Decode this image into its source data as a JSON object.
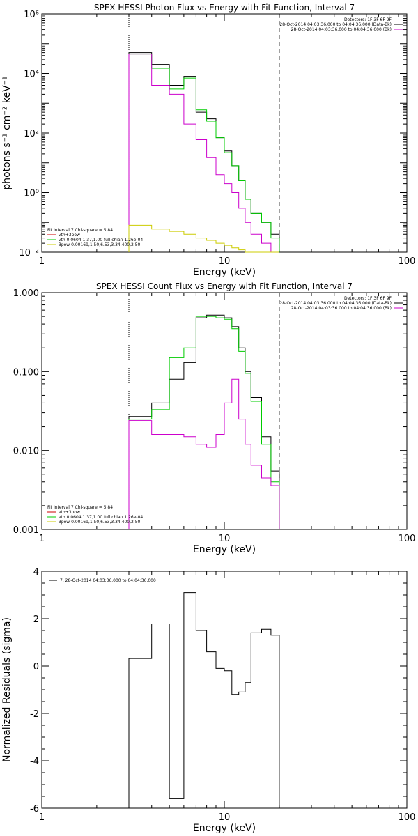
{
  "chart_data": [
    {
      "type": "line",
      "title": "SPEX HESSI Photon Flux vs Energy with Fit Function, Interval 7",
      "xlabel": "Energy (keV)",
      "ylabel": "photons s⁻¹ cm⁻² keV⁻¹",
      "xscale": "log",
      "yscale": "log",
      "xlim": [
        1,
        100
      ],
      "ylim": [
        0.01,
        1000000
      ],
      "x_tick_labels": [
        "1",
        "10",
        "100"
      ],
      "y_tick_labels": [
        "10⁻²",
        "10⁰",
        "10²",
        "10⁴",
        "10⁶"
      ],
      "y_tick_values": [
        0.01,
        1,
        100,
        10000,
        1000000
      ],
      "vlines": [
        {
          "x": 3.0,
          "style": "dotted"
        },
        {
          "x": 20.0,
          "style": "dashed"
        }
      ],
      "legend_right": [
        {
          "text": "Detectors: 1F 3F 6F 9F",
          "color": "#000000"
        },
        {
          "text": "28-Oct-2014 04:03:36.000 to 04:04:36.000 (Data-Bk)",
          "color": "#000000"
        },
        {
          "text": "28-Oct-2014 04:03:36.000 to 04:04:36.000 (Bk)",
          "color": "#cc00cc"
        }
      ],
      "legend_left": [
        {
          "text": "Fit Interval 7   Chi-square = 5.84",
          "color": "#000000"
        },
        {
          "text": "vth+3pow",
          "color": "#cc0000"
        },
        {
          "text": "vth 0.0604,1.37,1.00  full chian 1.26e-04",
          "color": "#00cc00"
        },
        {
          "text": "3pow 0.00169,1.50,6.53,3.34,400,2.50",
          "color": "#cccc00"
        }
      ],
      "series": [
        {
          "color": "#000000",
          "edges": [
            3.0,
            4.0,
            5.0,
            6.0,
            7.0,
            8.0,
            9.0,
            10.0,
            11.0,
            12.0,
            13.0,
            14.0,
            16.0,
            18.0,
            20.0
          ],
          "values": [
            50000,
            20000,
            4000,
            8000,
            500,
            300,
            70,
            25,
            8,
            2.5,
            0.6,
            0.2,
            0.1,
            0.04
          ]
        },
        {
          "color": "#00cc00",
          "edges": [
            3.0,
            4.0,
            5.0,
            6.0,
            7.0,
            8.0,
            9.0,
            10.0,
            11.0,
            12.0,
            13.0,
            14.0,
            16.0,
            18.0,
            20.0
          ],
          "values": [
            45000,
            15000,
            3000,
            7000,
            600,
            250,
            70,
            22,
            8,
            2.5,
            0.6,
            0.2,
            0.1,
            0.03
          ]
        },
        {
          "color": "#cc00cc",
          "edges": [
            3.0,
            4.0,
            5.0,
            6.0,
            7.0,
            8.0,
            9.0,
            10.0,
            11.0,
            12.0,
            13.0,
            14.0,
            16.0,
            18.0,
            20.0
          ],
          "values": [
            45000,
            4000,
            2000,
            200,
            60,
            15,
            4,
            2,
            1,
            0.3,
            0.1,
            0.04,
            0.02,
            0.008
          ]
        },
        {
          "color": "#cccc00",
          "edges": [
            3.0,
            4.0,
            5.0,
            6.0,
            7.0,
            8.0,
            9.0,
            10.0,
            11.0,
            12.0,
            13.0,
            14.0,
            16.0,
            18.0,
            20.0
          ],
          "values": [
            0.08,
            0.06,
            0.05,
            0.04,
            0.03,
            0.025,
            0.02,
            0.017,
            0.014,
            0.012,
            0.01,
            0.009,
            0.008,
            0.007
          ]
        }
      ]
    },
    {
      "type": "line",
      "title": "SPEX HESSI Count Flux vs Energy with Fit Function, Interval 7",
      "xlabel": "Energy (keV)",
      "ylabel": "",
      "xscale": "log",
      "yscale": "log",
      "xlim": [
        1,
        100
      ],
      "ylim": [
        0.001,
        1.0
      ],
      "x_tick_labels": [
        "1",
        "10",
        "100"
      ],
      "y_tick_labels": [
        "0.001",
        "0.010",
        "0.100",
        "1.000"
      ],
      "y_tick_values": [
        0.001,
        0.01,
        0.1,
        1.0
      ],
      "vlines": [
        {
          "x": 3.0,
          "style": "dotted"
        },
        {
          "x": 20.0,
          "style": "dashed"
        }
      ],
      "legend_right": [
        {
          "text": "Detectors: 1F 3F 6F 9F",
          "color": "#000000"
        },
        {
          "text": "28-Oct-2014 04:03:36.000 to 04:04:36.000 (Data-Bk)",
          "color": "#000000"
        },
        {
          "text": "28-Oct-2014 04:03:36.000 to 04:04:36.000 (Bk)",
          "color": "#cc00cc"
        }
      ],
      "legend_left": [
        {
          "text": "Fit Interval 7   Chi-square = 5.84",
          "color": "#000000"
        },
        {
          "text": "vth+3pow",
          "color": "#cc0000"
        },
        {
          "text": "vth 0.0604,1.37,1.00  full chian 1.26e-04",
          "color": "#00cc00"
        },
        {
          "text": "3pow 0.00169,1.50,6.53,3.34,400,2.50",
          "color": "#cccc00"
        }
      ],
      "series": [
        {
          "color": "#000000",
          "edges": [
            3.0,
            4.0,
            5.0,
            6.0,
            7.0,
            8.0,
            9.0,
            10.0,
            11.0,
            12.0,
            13.0,
            14.0,
            16.0,
            18.0,
            20.0
          ],
          "values": [
            0.027,
            0.04,
            0.08,
            0.13,
            0.48,
            0.52,
            0.52,
            0.48,
            0.37,
            0.2,
            0.1,
            0.047,
            0.015,
            0.0055
          ]
        },
        {
          "color": "#00cc00",
          "edges": [
            3.0,
            4.0,
            5.0,
            6.0,
            7.0,
            8.0,
            9.0,
            10.0,
            11.0,
            12.0,
            13.0,
            14.0,
            16.0,
            18.0,
            20.0
          ],
          "values": [
            0.025,
            0.033,
            0.15,
            0.2,
            0.5,
            0.5,
            0.48,
            0.46,
            0.35,
            0.18,
            0.095,
            0.042,
            0.012,
            0.004
          ]
        },
        {
          "color": "#cc00cc",
          "edges": [
            3.0,
            4.0,
            5.0,
            6.0,
            7.0,
            8.0,
            9.0,
            10.0,
            11.0,
            12.0,
            13.0,
            14.0,
            16.0,
            18.0,
            20.0
          ],
          "values": [
            0.024,
            0.016,
            0.016,
            0.015,
            0.012,
            0.011,
            0.016,
            0.04,
            0.08,
            0.025,
            0.012,
            0.0065,
            0.0045,
            0.0036
          ]
        }
      ]
    },
    {
      "type": "line",
      "title": "",
      "xlabel": "Energy (keV)",
      "ylabel": "Normalized Residuals (sigma)",
      "xscale": "log",
      "yscale": "linear",
      "xlim": [
        1,
        100
      ],
      "ylim": [
        -6,
        4
      ],
      "x_tick_labels": [
        "1",
        "10",
        "100"
      ],
      "y_tick_labels": [
        "-6",
        "-4",
        "-2",
        "0",
        "2",
        "4"
      ],
      "y_tick_values": [
        -6,
        -4,
        -2,
        0,
        2,
        4
      ],
      "legend": "7. 28-Oct-2014 04:03:36.000 to 04:04:36.000",
      "series": [
        {
          "color": "#000000",
          "edges": [
            3.0,
            4.0,
            5.0,
            6.0,
            7.0,
            8.0,
            9.0,
            10.0,
            11.0,
            12.0,
            13.0,
            14.0,
            16.0,
            18.0,
            20.0
          ],
          "values": [
            0.32,
            1.78,
            -5.6,
            3.1,
            1.5,
            0.6,
            -0.1,
            -0.2,
            -1.2,
            -1.1,
            -0.7,
            1.4,
            1.55,
            1.3
          ]
        }
      ]
    }
  ]
}
